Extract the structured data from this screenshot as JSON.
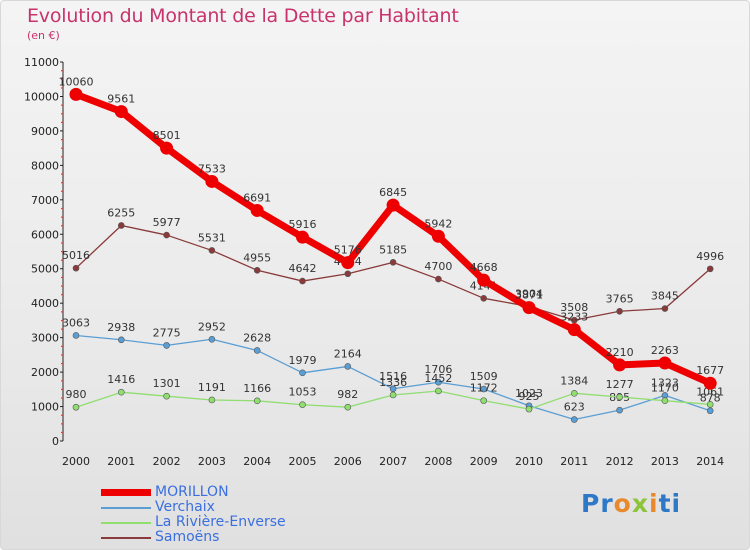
{
  "header": {
    "title": "Evolution du Montant de la Dette par Habitant",
    "subtitle": "(en €)"
  },
  "brand": {
    "p1": "Pr",
    "p2": "o",
    "p3": "x",
    "p4": "i",
    "p5": "ti"
  },
  "chart_data": {
    "type": "line",
    "title": "Evolution du Montant de la Dette par Habitant",
    "subtitle": "(en €)",
    "categories": [
      "2000",
      "2001",
      "2002",
      "2003",
      "2004",
      "2005",
      "2006",
      "2007",
      "2008",
      "2009",
      "2010",
      "2011",
      "2012",
      "2013",
      "2014"
    ],
    "ylim": [
      0,
      11000
    ],
    "yticks": [
      0,
      1000,
      2000,
      3000,
      4000,
      5000,
      6000,
      7000,
      8000,
      9000,
      10000,
      11000
    ],
    "grid": false,
    "legend_position": "bottom-left",
    "series": [
      {
        "name": "MORILLON",
        "color": "#ee0000",
        "emphasis": true,
        "values": [
          10060,
          9561,
          8501,
          7533,
          6691,
          5916,
          5176,
          6845,
          5942,
          4668,
          3871,
          3233,
          2210,
          2263,
          1677
        ]
      },
      {
        "name": "Verchaix",
        "color": "#5a9ed4",
        "values": [
          3063,
          2938,
          2775,
          2952,
          2628,
          1979,
          2164,
          1516,
          1706,
          1509,
          1023,
          623,
          895,
          1323,
          878
        ]
      },
      {
        "name": "La Rivière-Enverse",
        "color": "#90dd70",
        "values": [
          980,
          1416,
          1301,
          1191,
          1166,
          1053,
          982,
          1336,
          1452,
          1172,
          925,
          1384,
          1277,
          1170,
          1061
        ]
      },
      {
        "name": "Samoëns",
        "color": "#8a3a3a",
        "values": [
          5016,
          6255,
          5977,
          5531,
          4955,
          4642,
          4854,
          5185,
          4700,
          4141,
          3904,
          3508,
          3765,
          3845,
          4996
        ]
      }
    ]
  }
}
